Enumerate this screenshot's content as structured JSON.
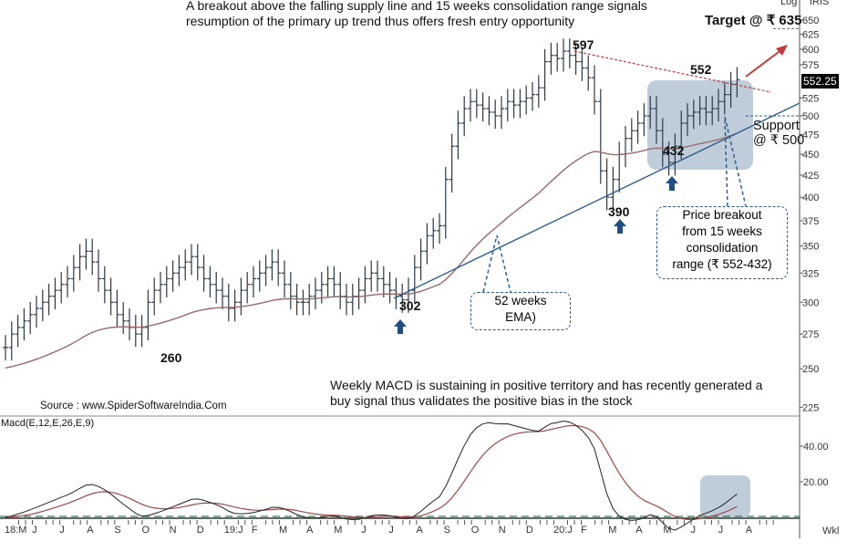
{
  "chart_data": {
    "type": "ohlc-bar",
    "title": "A breakout above the falling supply line and 15 weeks consolidation range signals resumption of the primary up trend thus offers fresh entry opportunity",
    "title_lines": [
      "A breakout above the falling supply line and 15 weeks consolidation range signals",
      "resumption of the primary up trend thus offers fresh entry opportunity"
    ],
    "scale": "Log",
    "brand": "IRIS",
    "period": "Wkl",
    "ylim": [
      225,
      650
    ],
    "y_ticks": [
      650,
      625,
      600,
      575,
      525,
      500,
      475,
      450,
      425,
      400,
      375,
      350,
      325,
      300,
      275,
      250,
      225
    ],
    "last_price": "552.25",
    "x_ticks": [
      "18:M",
      "J",
      "J",
      "A",
      "S",
      "O",
      "N",
      "D",
      "19:J",
      "F",
      "M",
      "A",
      "M",
      "J",
      "J",
      "A",
      "S",
      "O",
      "N",
      "D",
      "20:J",
      "F",
      "M",
      "A",
      "M",
      "J",
      "J",
      "A"
    ],
    "weekly_close": [
      265,
      275,
      280,
      285,
      290,
      295,
      300,
      305,
      310,
      315,
      320,
      330,
      340,
      345,
      335,
      320,
      310,
      300,
      290,
      285,
      280,
      275,
      280,
      300,
      310,
      315,
      320,
      325,
      330,
      335,
      340,
      330,
      320,
      315,
      310,
      305,
      295,
      300,
      310,
      315,
      320,
      325,
      330,
      335,
      325,
      315,
      305,
      300,
      300,
      305,
      310,
      315,
      320,
      315,
      305,
      300,
      305,
      310,
      320,
      325,
      320,
      315,
      310,
      305,
      302,
      310,
      330,
      345,
      360,
      365,
      370,
      420,
      460,
      490,
      510,
      520,
      515,
      510,
      505,
      500,
      510,
      520,
      515,
      520,
      525,
      530,
      540,
      580,
      590,
      585,
      597,
      590,
      580,
      570,
      555,
      520,
      430,
      400,
      420,
      450,
      470,
      480,
      490,
      500,
      510,
      480,
      450,
      440,
      460,
      490,
      500,
      505,
      510,
      505,
      510,
      520,
      530,
      545,
      552
    ],
    "ema_period_weeks": 52,
    "macd": {
      "label": "Macd(E,12,E,26,E,9)",
      "y_ticks": [
        40,
        20
      ],
      "ylim": [
        -2,
        50
      ]
    },
    "annotations": {
      "high_597": "597",
      "high_552": "552",
      "low_432": "432",
      "low_390": "390",
      "low_302": "302",
      "low_260": "260",
      "target": "Target @ ₹ 635",
      "support_line1": "Support",
      "support_line2": "@ ₹ 500",
      "ema_callout": [
        "52 weeks",
        "EMA)"
      ],
      "breakout_callout": [
        "Price breakout",
        "from 15 weeks",
        "consolidation",
        "range (₹ 552-432)"
      ],
      "macd_note": [
        "Weekly MACD is sustaining in positive territory and has recently generated  a",
        "buy signal thus validates the positive bias in the stock"
      ],
      "source": "Source : www.SpiderSoftwareIndia.Com"
    },
    "colors": {
      "bars": "#2a3a48",
      "ema": "#9a6a6a",
      "supply": "#c0393b",
      "trend": "#2f5f8f",
      "box": "#a9bccf",
      "macd": "#222",
      "signal": "#a04848"
    }
  }
}
